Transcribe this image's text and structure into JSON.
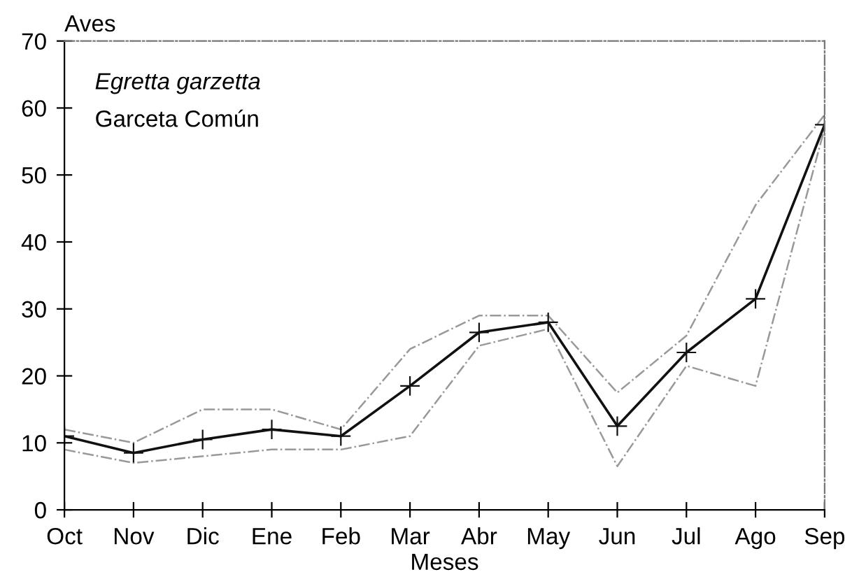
{
  "chart_data": {
    "type": "line",
    "ylabel": "Aves",
    "xlabel": "Meses",
    "annotations": [
      "Egretta garzetta",
      "Garceta Común"
    ],
    "categories": [
      "Oct",
      "Nov",
      "Dic",
      "Ene",
      "Feb",
      "Mar",
      "Abr",
      "May",
      "Jun",
      "Jul",
      "Ago",
      "Sep"
    ],
    "series": [
      {
        "color": "#999999",
        "line_style": "dashed",
        "marker": "none",
        "values": [
          12,
          10,
          15,
          15,
          12,
          24,
          29,
          29,
          17.5,
          26,
          45.5,
          59
        ]
      },
      {
        "color": "#999999",
        "line_style": "dashed",
        "marker": "none",
        "values": [
          9,
          7,
          8,
          9,
          9,
          11,
          24.5,
          27,
          6.5,
          21.5,
          18.5,
          57
        ]
      },
      {
        "color": "#111111",
        "line_style": "solid",
        "marker": "cross",
        "values": [
          11,
          8.5,
          10.5,
          12,
          11,
          18.5,
          26.5,
          28,
          12.5,
          23.5,
          31.5,
          57.5
        ]
      }
    ],
    "ylim": [
      0,
      70
    ],
    "yticks": [
      0,
      10,
      20,
      30,
      40,
      50,
      60,
      70
    ],
    "grid": false
  }
}
